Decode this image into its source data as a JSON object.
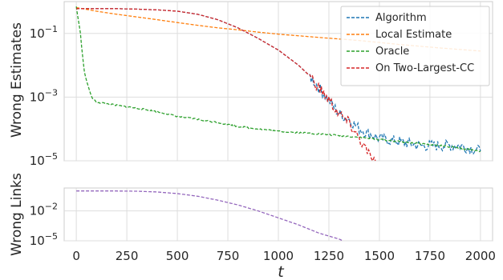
{
  "chart_data": [
    {
      "type": "line",
      "ylabel": "Wrong Estimates",
      "xlabel": "",
      "yscale": "log",
      "xlim": [
        -60,
        2060
      ],
      "ylim": [
        1e-05,
        1.0
      ],
      "yticks": [
        "10^{-1}",
        "10^{-3}",
        "10^{-5}"
      ],
      "grid": true,
      "legend": "top-right",
      "series": [
        {
          "name": "Algorithm",
          "color": "#1f77b4",
          "x": [
            0,
            100,
            200,
            300,
            400,
            500,
            600,
            700,
            800,
            900,
            1000,
            1100,
            1150,
            1200,
            1250,
            1300,
            1350,
            1400,
            1450,
            1500,
            1600,
            1700,
            1800,
            1900,
            2000
          ],
          "y": [
            0.6,
            0.6,
            0.6,
            0.58,
            0.55,
            0.5,
            0.4,
            0.27,
            0.15,
            0.07,
            0.03,
            0.01,
            0.005,
            0.002,
            0.0008,
            0.0003,
            0.0002,
            0.0001,
            7e-05,
            5e-05,
            4e-05,
            3e-05,
            3e-05,
            3e-05,
            2e-05
          ]
        },
        {
          "name": "Local Estimate",
          "color": "#ff7f0e",
          "x": [
            0,
            100,
            200,
            300,
            400,
            500,
            600,
            700,
            800,
            900,
            1000,
            1200,
            1400,
            1600,
            1800,
            2000
          ],
          "y": [
            0.65,
            0.5,
            0.4,
            0.33,
            0.27,
            0.22,
            0.18,
            0.15,
            0.13,
            0.11,
            0.095,
            0.075,
            0.06,
            0.045,
            0.035,
            0.028
          ]
        },
        {
          "name": "Oracle",
          "color": "#2ca02c",
          "x": [
            0,
            20,
            40,
            60,
            80,
            100,
            200,
            300,
            400,
            500,
            600,
            700,
            800,
            900,
            1000,
            1200,
            1400,
            1600,
            1800,
            2000
          ],
          "y": [
            0.7,
            0.1,
            0.006,
            0.002,
            0.0009,
            0.0007,
            0.00055,
            0.00045,
            0.00035,
            0.00025,
            0.0002,
            0.00016,
            0.00012,
            0.0001,
            8.5e-05,
            7e-05,
            5.5e-05,
            4e-05,
            3e-05,
            2e-05
          ]
        },
        {
          "name": "On Two-Largest-CC",
          "color": "#d62728",
          "x": [
            0,
            100,
            200,
            300,
            400,
            500,
            600,
            700,
            800,
            900,
            1000,
            1100,
            1150,
            1200,
            1250,
            1300,
            1350,
            1400,
            1420,
            1440,
            1460,
            1480
          ],
          "y": [
            0.6,
            0.6,
            0.6,
            0.58,
            0.55,
            0.5,
            0.4,
            0.27,
            0.15,
            0.07,
            0.03,
            0.01,
            0.005,
            0.002,
            0.0008,
            0.0003,
            0.00015,
            5e-05,
            3e-05,
            2e-05,
            1e-05,
            1e-05
          ]
        }
      ]
    },
    {
      "type": "line",
      "ylabel": "Wrong Links",
      "xlabel": "t",
      "yscale": "log",
      "xlim": [
        -60,
        2060
      ],
      "ylim": [
        1e-05,
        2.0
      ],
      "yticks": [
        "10^{-2}",
        "10^{-5}"
      ],
      "xticks": [
        0,
        250,
        500,
        750,
        1000,
        1250,
        1500,
        1750,
        2000
      ],
      "grid": true,
      "series": [
        {
          "color": "#9467bd",
          "x": [
            0,
            100,
            200,
            300,
            400,
            500,
            600,
            700,
            800,
            900,
            1000,
            1100,
            1200,
            1250,
            1300,
            1320
          ],
          "y": [
            1.0,
            1.0,
            1.0,
            0.95,
            0.8,
            0.55,
            0.3,
            0.12,
            0.04,
            0.01,
            0.002,
            0.0004,
            6e-05,
            3e-05,
            1.5e-05,
            1e-05
          ]
        }
      ]
    }
  ]
}
